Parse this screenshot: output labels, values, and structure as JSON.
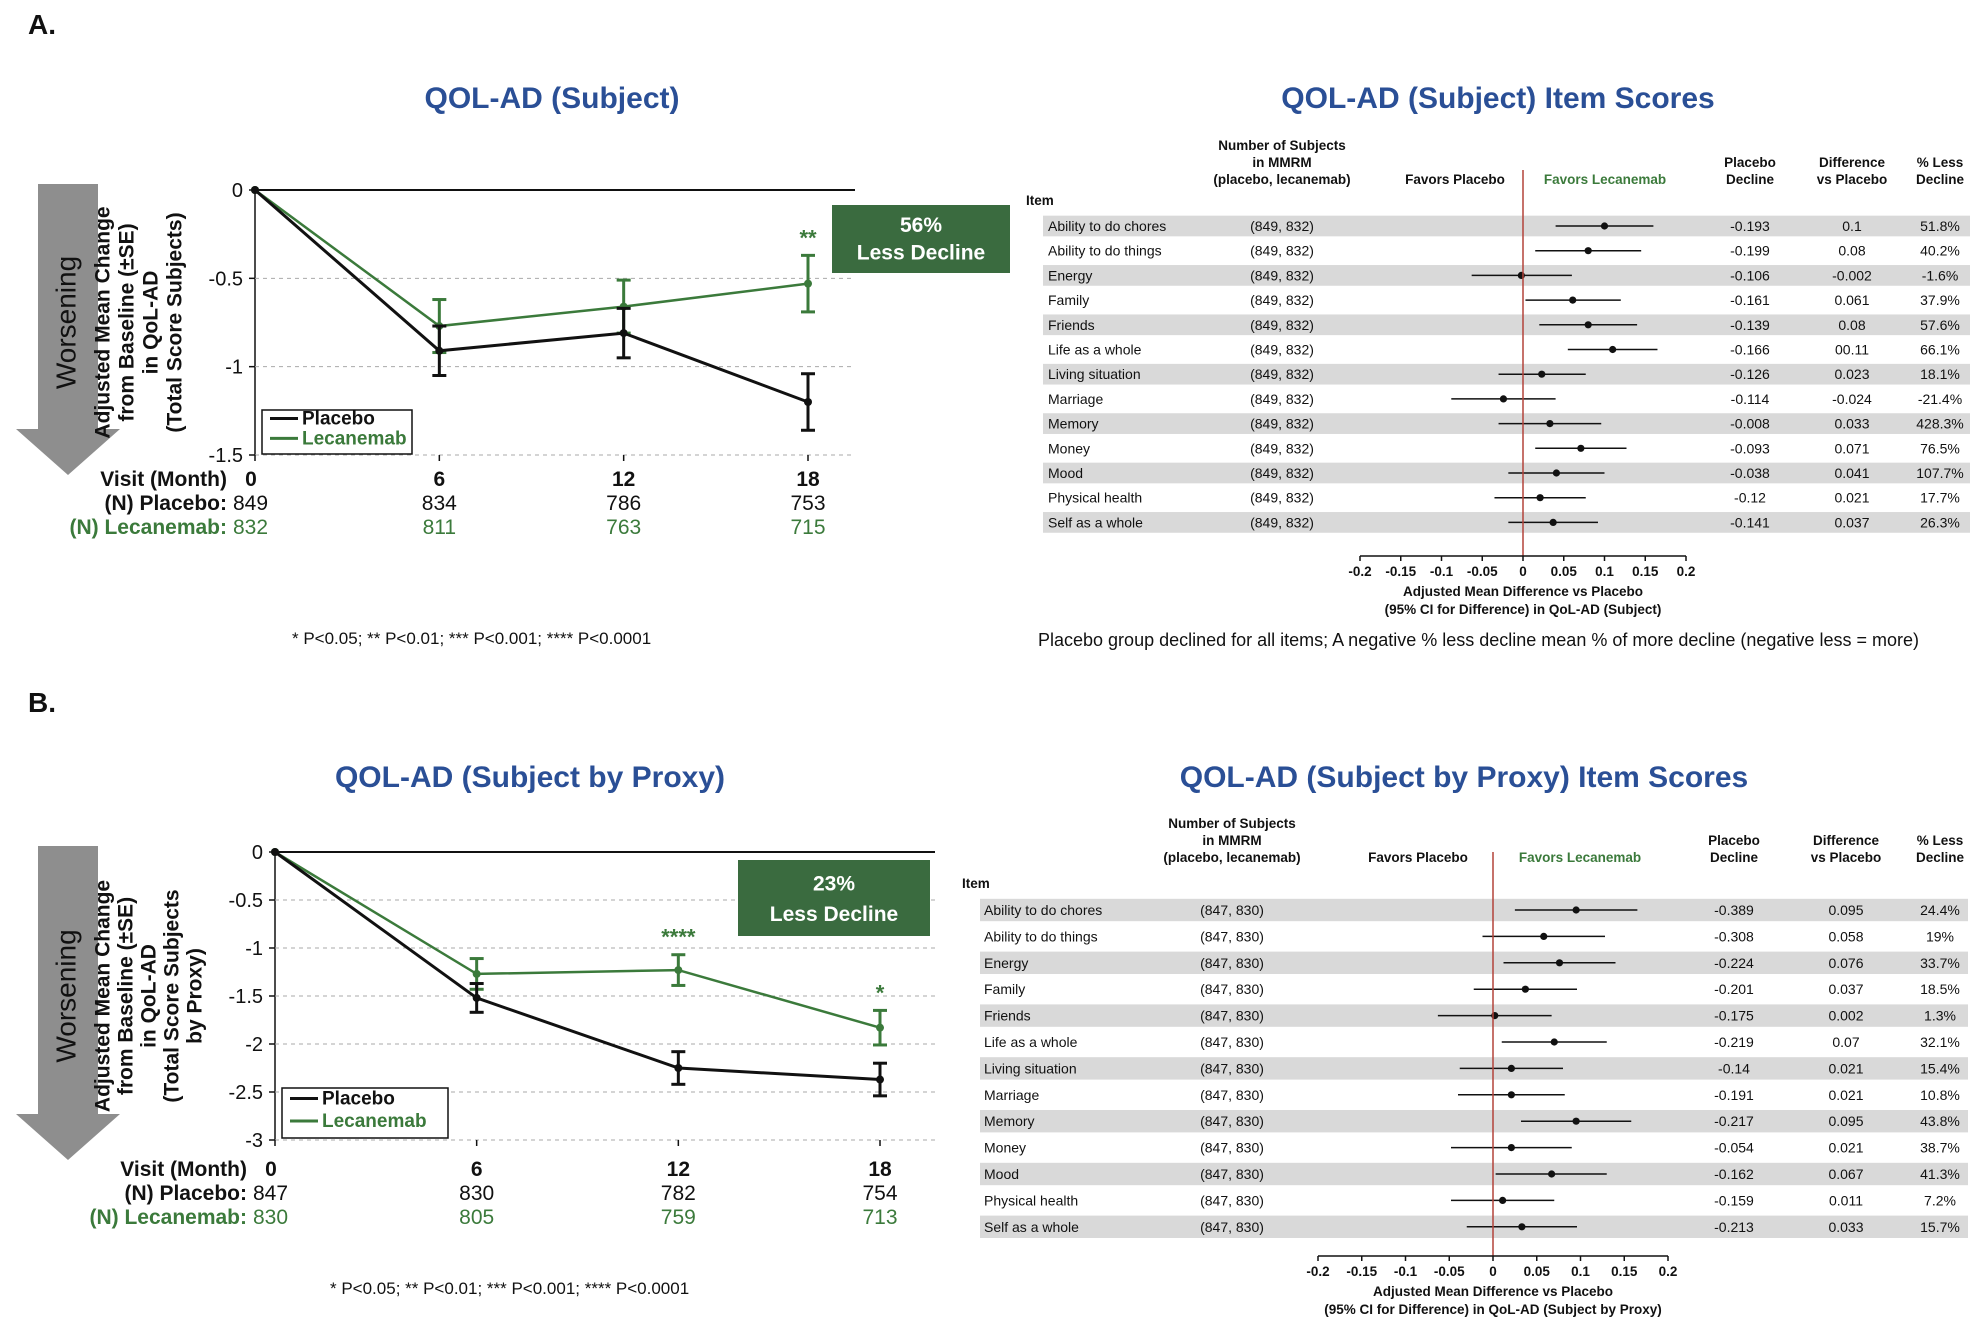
{
  "panel_a_letter": "A.",
  "panel_b_letter": "B.",
  "worsening_label": "Worsening",
  "visit_label": "Visit (Month)",
  "placebo_n_label": "(N) Placebo:",
  "lecanemab_n_label": "(N) Lecanemab:",
  "sig_note": "* P<0.05; ** P<0.01; *** P<0.001; **** P<0.0001",
  "forest_note": "Placebo group declined for all items;  A negative % less decline mean % of more decline (negative less = more)",
  "colors": {
    "placebo": "#111111",
    "lecanemab": "#3b7a3b",
    "title": "#2a4f96",
    "ref_line": "#b3433a",
    "row_shade": "#d9d9d9",
    "callout": "#3a6b3f"
  },
  "chart_data": [
    {
      "type": "line",
      "title": "QOL-AD (Subject)",
      "ylabel": [
        "Adjusted Mean Change",
        "from Baseline (±SE)",
        "in QoL-AD",
        "(Total Score Subjects)"
      ],
      "x": [
        0,
        6,
        12,
        18
      ],
      "ylim": [
        -1.5,
        0
      ],
      "yticks": [
        "0",
        "-0.5",
        "-1",
        "-1.5"
      ],
      "ytick_values": [
        0,
        -0.5,
        -1,
        -1.5
      ],
      "series": [
        {
          "name": "Placebo",
          "values": [
            0,
            -0.91,
            -0.81,
            -1.2
          ],
          "se": [
            0,
            0.14,
            0.14,
            0.16
          ]
        },
        {
          "name": "Lecanemab",
          "values": [
            0,
            -0.77,
            -0.66,
            -0.53
          ],
          "se": [
            0,
            0.15,
            0.15,
            0.16
          ]
        }
      ],
      "significance": [
        "",
        "",
        "",
        "**"
      ],
      "callout": [
        "56%",
        "Less Decline"
      ],
      "n_placebo": [
        "849",
        "834",
        "786",
        "753"
      ],
      "n_lecanemab": [
        "832",
        "811",
        "763",
        "715"
      ]
    },
    {
      "type": "scatter",
      "title": "QOL-AD (Subject) Item Scores",
      "header_n": [
        "Number of Subjects",
        "in MMRM",
        "(placebo, lecanemab)"
      ],
      "favors_placebo": "Favors Placebo",
      "favors_lecanemab": "Favors Lecanemab",
      "header_item": "Item",
      "header_placebo_decline": [
        "Placebo",
        "Decline"
      ],
      "header_difference": [
        "Difference",
        "vs Placebo"
      ],
      "header_pct": [
        "% Less",
        "Decline"
      ],
      "xlim": [
        -0.2,
        0.2
      ],
      "xticks": [
        "-0.2",
        "-0.15",
        "-0.1",
        "-0.05",
        "0",
        "0.05",
        "0.1",
        "0.15",
        "0.2"
      ],
      "xtick_values": [
        -0.2,
        -0.15,
        -0.1,
        -0.05,
        0,
        0.05,
        0.1,
        0.15,
        0.2
      ],
      "xlabel": [
        "Adjusted Mean Difference vs Placebo",
        "(95% CI for Difference) in QoL-AD (Subject)"
      ],
      "rows": [
        {
          "item": "Ability to do chores",
          "n": "(849, 832)",
          "placebo_decline": "-0.193",
          "difference": "0.1",
          "pct": "51.8%",
          "est": 0.1,
          "lo": 0.04,
          "hi": 0.16
        },
        {
          "item": "Ability to do things",
          "n": "(849, 832)",
          "placebo_decline": "-0.199",
          "difference": "0.08",
          "pct": "40.2%",
          "est": 0.08,
          "lo": 0.015,
          "hi": 0.145
        },
        {
          "item": "Energy",
          "n": "(849, 832)",
          "placebo_decline": "-0.106",
          "difference": "-0.002",
          "pct": "-1.6%",
          "est": -0.002,
          "lo": -0.063,
          "hi": 0.06
        },
        {
          "item": "Family",
          "n": "(849, 832)",
          "placebo_decline": "-0.161",
          "difference": "0.061",
          "pct": "37.9%",
          "est": 0.061,
          "lo": 0.003,
          "hi": 0.12
        },
        {
          "item": "Friends",
          "n": "(849, 832)",
          "placebo_decline": "-0.139",
          "difference": "0.08",
          "pct": "57.6%",
          "est": 0.08,
          "lo": 0.02,
          "hi": 0.14
        },
        {
          "item": "Life as a whole",
          "n": "(849, 832)",
          "placebo_decline": "-0.166",
          "difference": "00.11",
          "pct": "66.1%",
          "est": 0.11,
          "lo": 0.055,
          "hi": 0.165
        },
        {
          "item": "Living situation",
          "n": "(849, 832)",
          "placebo_decline": "-0.126",
          "difference": "0.023",
          "pct": "18.1%",
          "est": 0.023,
          "lo": -0.03,
          "hi": 0.077
        },
        {
          "item": "Marriage",
          "n": "(849, 832)",
          "placebo_decline": "-0.114",
          "difference": "-0.024",
          "pct": "-21.4%",
          "est": -0.024,
          "lo": -0.088,
          "hi": 0.04
        },
        {
          "item": "Memory",
          "n": "(849, 832)",
          "placebo_decline": "-0.008",
          "difference": "0.033",
          "pct": "428.3%",
          "est": 0.033,
          "lo": -0.03,
          "hi": 0.096
        },
        {
          "item": "Money",
          "n": "(849, 832)",
          "placebo_decline": "-0.093",
          "difference": "0.071",
          "pct": "76.5%",
          "est": 0.071,
          "lo": 0.015,
          "hi": 0.127
        },
        {
          "item": "Mood",
          "n": "(849, 832)",
          "placebo_decline": "-0.038",
          "difference": "0.041",
          "pct": "107.7%",
          "est": 0.041,
          "lo": -0.018,
          "hi": 0.1
        },
        {
          "item": "Physical health",
          "n": "(849, 832)",
          "placebo_decline": "-0.12",
          "difference": "0.021",
          "pct": "17.7%",
          "est": 0.021,
          "lo": -0.035,
          "hi": 0.077
        },
        {
          "item": "Self as a whole",
          "n": "(849, 832)",
          "placebo_decline": "-0.141",
          "difference": "0.037",
          "pct": "26.3%",
          "est": 0.037,
          "lo": -0.018,
          "hi": 0.092
        }
      ]
    },
    {
      "type": "line",
      "title": "QOL-AD (Subject by Proxy)",
      "ylabel": [
        "Adjusted Mean Change",
        "from Baseline (±SE)",
        "in QoL-AD",
        "(Total Score Subjects",
        "by Proxy)"
      ],
      "x": [
        0,
        6,
        12,
        18
      ],
      "ylim": [
        -3,
        0
      ],
      "yticks": [
        "0",
        "-0.5",
        "-1",
        "-1.5",
        "-2",
        "-2.5",
        "-3"
      ],
      "ytick_values": [
        0,
        -0.5,
        -1,
        -1.5,
        -2,
        -2.5,
        -3
      ],
      "series": [
        {
          "name": "Placebo",
          "values": [
            0,
            -1.52,
            -2.25,
            -2.37
          ],
          "se": [
            0,
            0.15,
            0.17,
            0.17
          ]
        },
        {
          "name": "Lecanemab",
          "values": [
            0,
            -1.27,
            -1.23,
            -1.83
          ],
          "se": [
            0,
            0.16,
            0.16,
            0.18
          ]
        }
      ],
      "significance": [
        "",
        "",
        "****",
        "*"
      ],
      "callout": [
        "23%",
        "Less Decline"
      ],
      "n_placebo": [
        "847",
        "830",
        "782",
        "754"
      ],
      "n_lecanemab": [
        "830",
        "805",
        "759",
        "713"
      ]
    },
    {
      "type": "scatter",
      "title": "QOL-AD (Subject by Proxy) Item Scores",
      "header_n": [
        "Number of Subjects",
        "in MMRM",
        "(placebo, lecanemab)"
      ],
      "favors_placebo": "Favors Placebo",
      "favors_lecanemab": "Favors Lecanemab",
      "header_item": "Item",
      "header_placebo_decline": [
        "Placebo",
        "Decline"
      ],
      "header_difference": [
        "Difference",
        "vs Placebo"
      ],
      "header_pct": [
        "% Less",
        "Decline"
      ],
      "xlim": [
        -0.2,
        0.2
      ],
      "xticks": [
        "-0.2",
        "-0.15",
        "-0.1",
        "-0.05",
        "0",
        "0.05",
        "0.1",
        "0.15",
        "0.2"
      ],
      "xtick_values": [
        -0.2,
        -0.15,
        -0.1,
        -0.05,
        0,
        0.05,
        0.1,
        0.15,
        0.2
      ],
      "xlabel": [
        "Adjusted Mean Difference vs Placebo",
        "(95% CI for Difference) in QoL-AD (Subject by Proxy)"
      ],
      "rows": [
        {
          "item": "Ability to do chores",
          "n": "(847, 830)",
          "placebo_decline": "-0.389",
          "difference": "0.095",
          "pct": "24.4%",
          "est": 0.095,
          "lo": 0.025,
          "hi": 0.165
        },
        {
          "item": "Ability to do things",
          "n": "(847, 830)",
          "placebo_decline": "-0.308",
          "difference": "0.058",
          "pct": "19%",
          "est": 0.058,
          "lo": -0.012,
          "hi": 0.128
        },
        {
          "item": "Energy",
          "n": "(847, 830)",
          "placebo_decline": "-0.224",
          "difference": "0.076",
          "pct": "33.7%",
          "est": 0.076,
          "lo": 0.012,
          "hi": 0.14
        },
        {
          "item": "Family",
          "n": "(847, 830)",
          "placebo_decline": "-0.201",
          "difference": "0.037",
          "pct": "18.5%",
          "est": 0.037,
          "lo": -0.022,
          "hi": 0.096
        },
        {
          "item": "Friends",
          "n": "(847, 830)",
          "placebo_decline": "-0.175",
          "difference": "0.002",
          "pct": "1.3%",
          "est": 0.002,
          "lo": -0.063,
          "hi": 0.067
        },
        {
          "item": "Life as a whole",
          "n": "(847, 830)",
          "placebo_decline": "-0.219",
          "difference": "0.07",
          "pct": "32.1%",
          "est": 0.07,
          "lo": 0.01,
          "hi": 0.13
        },
        {
          "item": "Living situation",
          "n": "(847, 830)",
          "placebo_decline": "-0.14",
          "difference": "0.021",
          "pct": "15.4%",
          "est": 0.021,
          "lo": -0.038,
          "hi": 0.08
        },
        {
          "item": "Marriage",
          "n": "(847, 830)",
          "placebo_decline": "-0.191",
          "difference": "0.021",
          "pct": "10.8%",
          "est": 0.021,
          "lo": -0.04,
          "hi": 0.082
        },
        {
          "item": "Memory",
          "n": "(847, 830)",
          "placebo_decline": "-0.217",
          "difference": "0.095",
          "pct": "43.8%",
          "est": 0.095,
          "lo": 0.032,
          "hi": 0.158
        },
        {
          "item": "Money",
          "n": "(847, 830)",
          "placebo_decline": "-0.054",
          "difference": "0.021",
          "pct": "38.7%",
          "est": 0.021,
          "lo": -0.048,
          "hi": 0.09
        },
        {
          "item": "Mood",
          "n": "(847, 830)",
          "placebo_decline": "-0.162",
          "difference": "0.067",
          "pct": "41.3%",
          "est": 0.067,
          "lo": 0.003,
          "hi": 0.13
        },
        {
          "item": "Physical health",
          "n": "(847, 830)",
          "placebo_decline": "-0.159",
          "difference": "0.011",
          "pct": "7.2%",
          "est": 0.011,
          "lo": -0.048,
          "hi": 0.07
        },
        {
          "item": "Self as a whole",
          "n": "(847, 830)",
          "placebo_decline": "-0.213",
          "difference": "0.033",
          "pct": "15.7%",
          "est": 0.033,
          "lo": -0.03,
          "hi": 0.096
        }
      ]
    }
  ]
}
